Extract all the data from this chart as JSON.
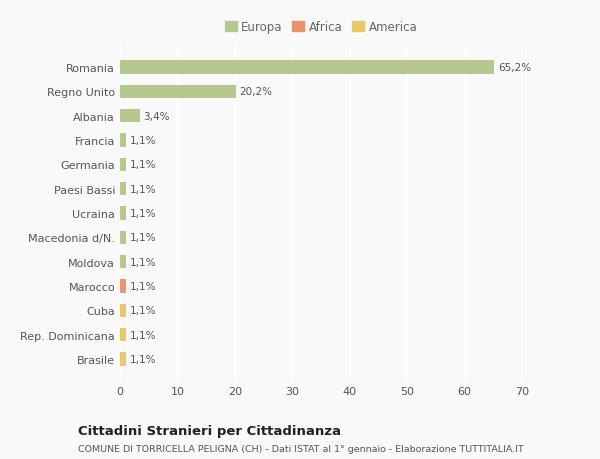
{
  "categories": [
    "Romania",
    "Regno Unito",
    "Albania",
    "Francia",
    "Germania",
    "Paesi Bassi",
    "Ucraina",
    "Macedonia d/N.",
    "Moldova",
    "Marocco",
    "Cuba",
    "Rep. Dominicana",
    "Brasile"
  ],
  "values": [
    65.2,
    20.2,
    3.4,
    1.1,
    1.1,
    1.1,
    1.1,
    1.1,
    1.1,
    1.1,
    1.1,
    1.1,
    1.1
  ],
  "labels": [
    "65,2%",
    "20,2%",
    "3,4%",
    "1,1%",
    "1,1%",
    "1,1%",
    "1,1%",
    "1,1%",
    "1,1%",
    "1,1%",
    "1,1%",
    "1,1%",
    "1,1%"
  ],
  "colors": [
    "#b5c98e",
    "#b5c98e",
    "#b5c98e",
    "#b5c98e",
    "#b5c98e",
    "#b5c98e",
    "#b5c98e",
    "#b5c98e",
    "#b5c98e",
    "#e8956d",
    "#e8c96d",
    "#e8c96d",
    "#e8c96d"
  ],
  "legend_labels": [
    "Europa",
    "Africa",
    "America"
  ],
  "legend_colors": [
    "#b5c98e",
    "#e8956d",
    "#e8c96d"
  ],
  "xlim": [
    0,
    70
  ],
  "xticks": [
    0,
    10,
    20,
    30,
    40,
    50,
    60,
    70
  ],
  "title": "Cittadini Stranieri per Cittadinanza",
  "subtitle": "COMUNE DI TORRICELLA PELIGNA (CH) - Dati ISTAT al 1° gennaio - Elaborazione TUTTITALIA.IT",
  "bg_color": "#f9f9f9",
  "grid_color": "#ffffff",
  "bar_height": 0.55
}
